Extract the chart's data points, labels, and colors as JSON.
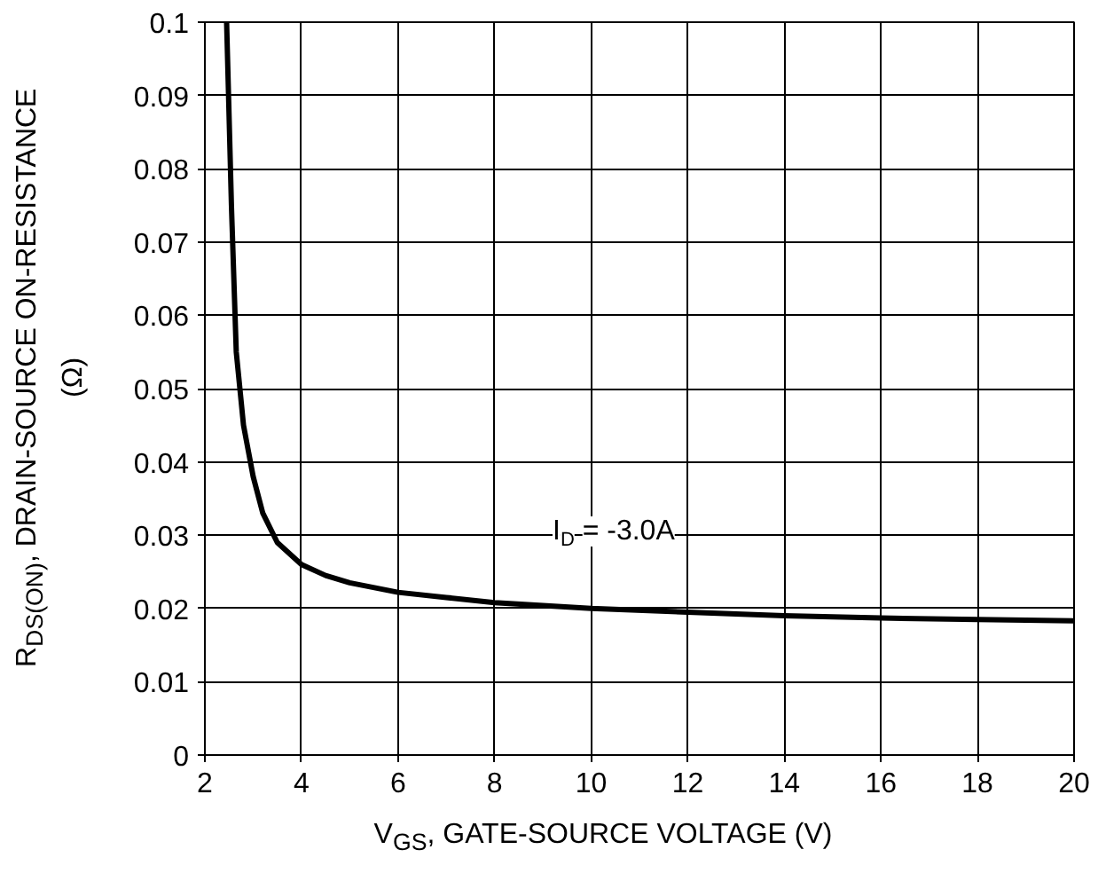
{
  "chart_data": {
    "type": "line",
    "xlabel": "V$_{GS}$, GATE-SOURCE VOLTAGE (V)",
    "ylabel": "R$_{DS(ON)}$, DRAIN-SOURCE ON-RESISTANCE\n(Ω)",
    "x": [
      2.45,
      2.55,
      2.65,
      2.8,
      3.0,
      3.2,
      3.5,
      4,
      4.5,
      5,
      6,
      7,
      8,
      10,
      12,
      14,
      16,
      18,
      20
    ],
    "series": [
      {
        "color": "#000000",
        "values": [
          0.1,
          0.075,
          0.055,
          0.045,
          0.038,
          0.033,
          0.029,
          0.026,
          0.0245,
          0.0235,
          0.0222,
          0.0215,
          0.0208,
          0.02,
          0.0195,
          0.019,
          0.0187,
          0.0185,
          0.0183
        ]
      }
    ],
    "xlim": [
      2,
      20
    ],
    "xticks": [
      2,
      4,
      6,
      8,
      10,
      12,
      14,
      16,
      18,
      20
    ],
    "ylim": [
      0,
      0.1
    ],
    "yticks": [
      0,
      0.01,
      0.02,
      0.03,
      0.04,
      0.05,
      0.06,
      0.07,
      0.08,
      0.09,
      0.1
    ],
    "annotations": [
      "I$_{D}$ = -3.0A"
    ],
    "grid": true,
    "line_style": "solid"
  }
}
